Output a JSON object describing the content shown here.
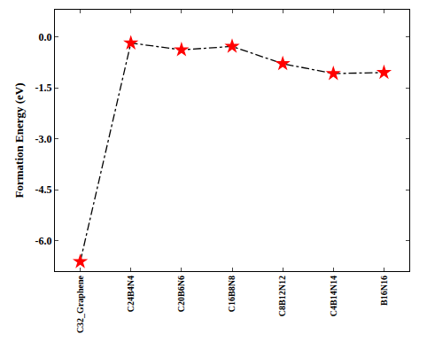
{
  "chart_data": {
    "type": "line",
    "y_label": "Formation Energy (eV)",
    "categories": [
      "C32_Graphene",
      "C24B4N4",
      "C20B6N6",
      "C16B8N8",
      "C8B12N12",
      "C4B14N14",
      "B16N16"
    ],
    "values": [
      -6.62,
      -0.18,
      -0.38,
      -0.28,
      -0.79,
      -1.08,
      -1.05
    ],
    "color": "#ff0000",
    "marker": "star",
    "line_style": "dashdot",
    "ylim": [
      -6.9,
      0.8
    ],
    "yticks": [
      {
        "value": 0,
        "label": "0.0"
      },
      {
        "value": -1.5,
        "label": "-1.5"
      },
      {
        "value": -3,
        "label": "-3.0"
      },
      {
        "value": -4.5,
        "label": "-4.5"
      },
      {
        "value": -6,
        "label": "-6.0"
      }
    ],
    "grid": false
  }
}
